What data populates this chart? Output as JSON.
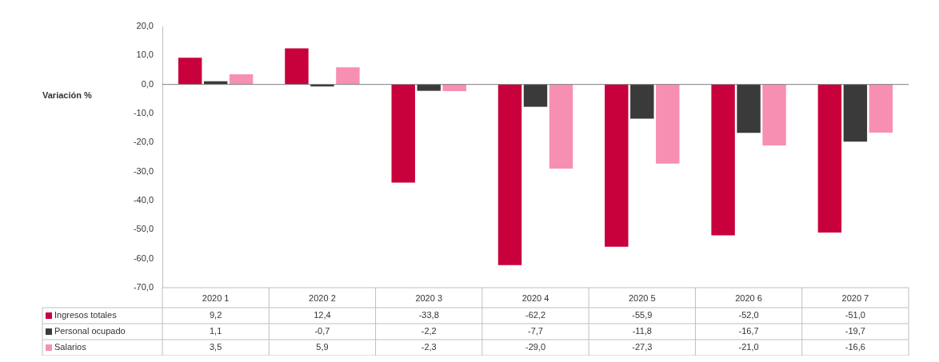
{
  "chart_data": {
    "type": "bar",
    "ylabel": "Variación %",
    "categories": [
      "2020 1",
      "2020 2",
      "2020 3",
      "2020 4",
      "2020 5",
      "2020 6",
      "2020 7"
    ],
    "series": [
      {
        "name": "Ingresos totales",
        "color": "#c8003c",
        "values": [
          9.2,
          12.4,
          -33.8,
          -62.2,
          -55.9,
          -52.0,
          -51.0
        ],
        "value_labels": [
          "9,2",
          "12,4",
          "-33,8",
          "-62,2",
          "-55,9",
          "-52,0",
          "-51,0"
        ]
      },
      {
        "name": "Personal ocupado",
        "color": "#3a3a3a",
        "values": [
          1.1,
          -0.7,
          -2.2,
          -7.7,
          -11.8,
          -16.7,
          -19.7
        ],
        "value_labels": [
          "1,1",
          "-0,7",
          "-2,2",
          "-7,7",
          "-11,8",
          "-16,7",
          "-19,7"
        ]
      },
      {
        "name": "Salarios",
        "color": "#f78fb3",
        "values": [
          3.5,
          5.9,
          -2.3,
          -29.0,
          -27.3,
          -21.0,
          -16.6
        ],
        "value_labels": [
          "3,5",
          "5,9",
          "-2,3",
          "-29,0",
          "-27,3",
          "-21,0",
          "-16,6"
        ]
      }
    ],
    "ylim": [
      -70,
      20
    ],
    "yticks": [
      {
        "value": 20,
        "label": "20,0"
      },
      {
        "value": 10,
        "label": "10,0"
      },
      {
        "value": 0,
        "label": "0,0"
      },
      {
        "value": -10,
        "label": "-10,0"
      },
      {
        "value": -20,
        "label": "-20,0"
      },
      {
        "value": -30,
        "label": "-30,0"
      },
      {
        "value": -40,
        "label": "-40,0"
      },
      {
        "value": -50,
        "label": "-50,0"
      },
      {
        "value": -60,
        "label": "-60,0"
      },
      {
        "value": -70,
        "label": "-70,0"
      }
    ],
    "ref_lines": [
      {
        "axis": "y",
        "value": 0,
        "color": "#7f7f7f"
      }
    ],
    "grid": false,
    "legend": "bottom"
  }
}
